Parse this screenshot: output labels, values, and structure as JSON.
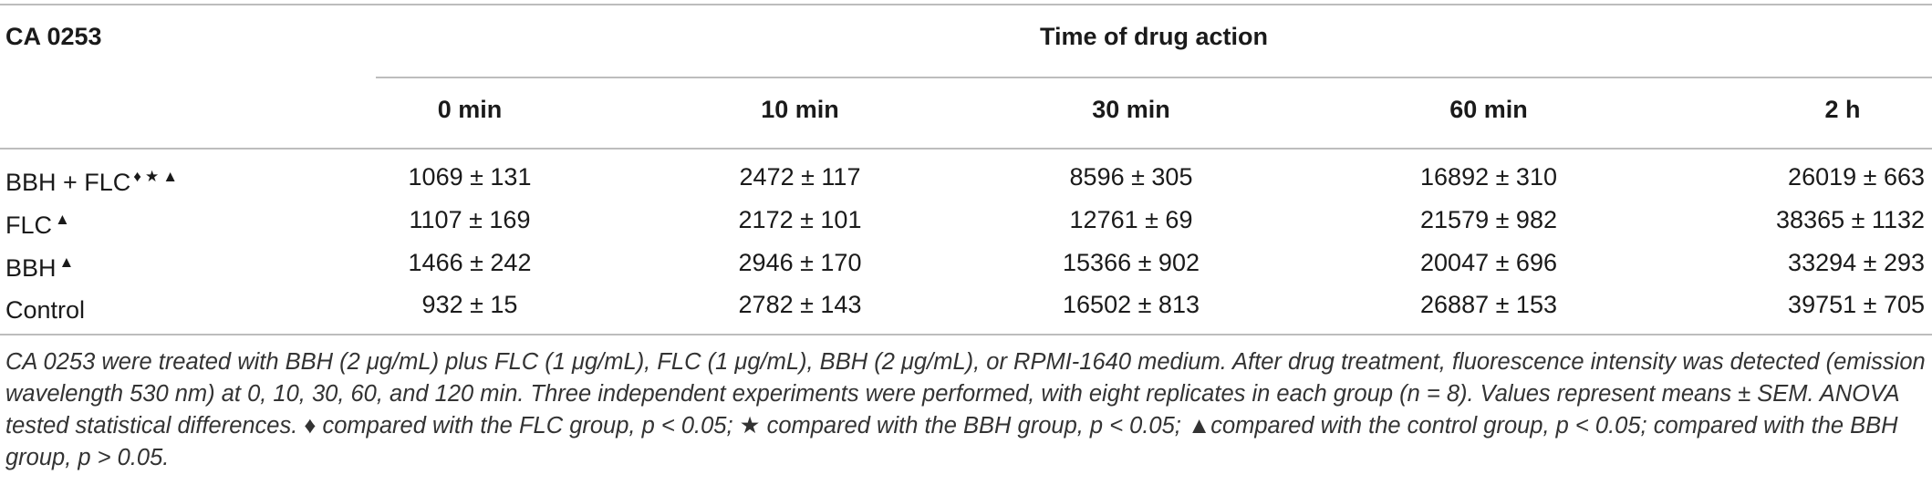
{
  "table": {
    "corner_label": "CA 0253",
    "group_header": "Time of drug action",
    "columns": [
      "0 min",
      "10 min",
      "30 min",
      "60 min",
      "2 h"
    ],
    "rows": [
      {
        "label": "BBH + FLC",
        "marks": "♦★▲",
        "values": [
          "1069 ± 131",
          "2472 ± 117",
          "8596 ± 305",
          "16892 ± 310",
          "26019 ± 663"
        ]
      },
      {
        "label": "FLC",
        "marks": "▲",
        "values": [
          "1107 ± 169",
          "2172 ± 101",
          "12761 ± 69",
          "21579 ± 982",
          "38365 ± 1132"
        ]
      },
      {
        "label": "BBH",
        "marks": "▲",
        "values": [
          "1466 ± 242",
          "2946 ± 170",
          "15366 ± 902",
          "20047 ± 696",
          "33294 ± 293"
        ]
      },
      {
        "label": "Control",
        "marks": "",
        "values": [
          "932 ± 15",
          "2782 ± 143",
          "16502 ± 813",
          "26887 ± 153",
          "39751 ± 705"
        ]
      }
    ]
  },
  "footnote": "CA 0253 were treated with BBH (2 μg/mL) plus FLC (1 μg/mL), FLC (1 μg/mL), BBH (2 μg/mL), or RPMI-1640 medium. After drug treatment, fluorescence intensity was detected (emission wavelength 530 nm) at 0, 10, 30, 60, and 120 min. Three independent experiments were performed, with eight replicates in each group (n = 8). Values represent means ± SEM. ANOVA tested statistical differences. ♦ compared with the FLC group, p < 0.05; ★ compared with the BBH group, p < 0.05; ▲compared with the control group, p < 0.05;  compared with the BBH group, p > 0.05."
}
